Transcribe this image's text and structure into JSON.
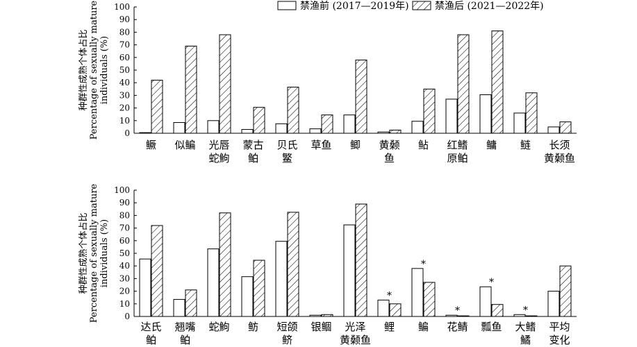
{
  "legend": {
    "before": "禁渔前 (2017—2019年)",
    "after": "禁渔后 (2021—2022年)",
    "placement": "top-right"
  },
  "colors": {
    "stroke": "#000000",
    "fill": "#ffffff"
  },
  "chart_data": [
    {
      "type": "bar",
      "ylabel": [
        "种群性成熟个体占比",
        "Percentage of sexually mature",
        "individuals (%)"
      ],
      "ylim": [
        0,
        100
      ],
      "yticks": [
        0,
        10,
        20,
        30,
        40,
        50,
        60,
        70,
        80,
        90,
        100
      ],
      "categories": [
        [
          "鳜"
        ],
        [
          "似鳊"
        ],
        [
          "光唇",
          "蛇鮈"
        ],
        [
          "蒙古",
          "鲌"
        ],
        [
          "贝氏",
          "鳘"
        ],
        [
          "草鱼"
        ],
        [
          "鲫"
        ],
        [
          "黄颡",
          "鱼"
        ],
        [
          "鲇"
        ],
        [
          "红鳍",
          "原鲌"
        ],
        [
          "鳙"
        ],
        [
          "鲢"
        ],
        [
          "长须",
          "黄颡鱼"
        ]
      ],
      "series": [
        {
          "name": "禁渔前 (2017—2019年)",
          "values": [
            0.5,
            8.5,
            10,
            3,
            7.5,
            3.5,
            14.5,
            1,
            9.5,
            27,
            30.5,
            16,
            5
          ]
        },
        {
          "name": "禁渔后 (2021—2022年)",
          "values": [
            42,
            69,
            78,
            20.5,
            36.5,
            14.5,
            58,
            2.5,
            35,
            78,
            81,
            32,
            9
          ]
        }
      ],
      "significance": [],
      "grid": false
    },
    {
      "type": "bar",
      "ylabel": [
        "种群性成熟个体占比",
        "Percentage of sexually mature",
        "individuals (%)"
      ],
      "ylim": [
        0,
        100
      ],
      "yticks": [
        0,
        10,
        20,
        30,
        40,
        50,
        60,
        70,
        80,
        90,
        100
      ],
      "categories": [
        [
          "达氏",
          "鲌"
        ],
        [
          "翘嘴",
          "鲌"
        ],
        [
          "蛇鮈"
        ],
        [
          "鲂"
        ],
        [
          "短颌",
          "鲚"
        ],
        [
          "银鲴"
        ],
        [
          "光泽",
          "黄颡鱼"
        ],
        [
          "鲤"
        ],
        [
          "鳊"
        ],
        [
          "花鲭"
        ],
        [
          "瓢鱼"
        ],
        [
          "大鳍",
          "鱊"
        ],
        [
          "平均",
          "变化"
        ]
      ],
      "series": [
        {
          "name": "禁渔前 (2017—2019年)",
          "values": [
            45.5,
            13.5,
            53.5,
            31.5,
            59.5,
            1,
            72.5,
            13,
            38,
            1,
            23.5,
            1.5,
            20
          ]
        },
        {
          "name": "禁渔后 (2021—2022年)",
          "values": [
            72,
            21,
            82,
            44.5,
            82.5,
            1.5,
            89,
            10,
            27,
            0.5,
            9.5,
            0.5,
            40
          ]
        }
      ],
      "significance": [
        7,
        8,
        9,
        10,
        11
      ],
      "significance_mark": "*",
      "grid": false
    }
  ]
}
